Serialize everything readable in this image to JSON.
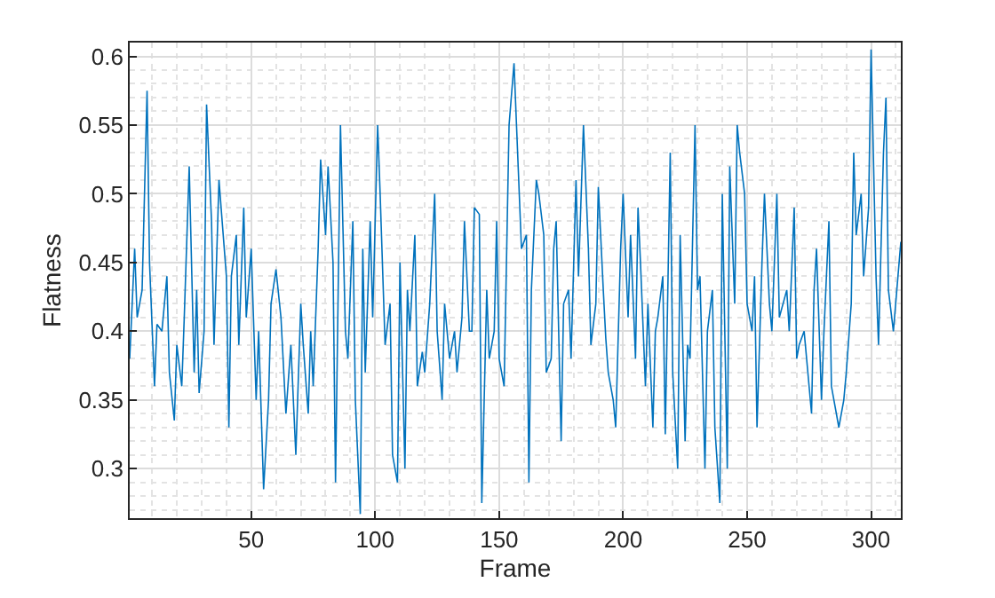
{
  "chart_data": {
    "type": "line",
    "xlabel": "Frame",
    "ylabel": "Flatness",
    "xlim": [
      1,
      312
    ],
    "ylim": [
      0.264,
      0.61
    ],
    "xticks": [
      50,
      100,
      150,
      200,
      250,
      300
    ],
    "yticks": [
      0.3,
      0.35,
      0.4,
      0.45,
      0.5,
      0.55,
      0.6
    ],
    "grid": true,
    "line_style": "solid",
    "marker": "none",
    "series": [
      {
        "color": "#0072bd",
        "x": [
          1,
          3,
          4,
          6,
          8,
          9,
          11,
          12,
          14,
          16,
          17,
          19,
          20,
          22,
          23,
          25,
          27,
          28,
          29,
          31,
          32,
          34,
          35,
          37,
          40,
          41,
          42,
          44,
          45,
          47,
          48,
          50,
          52,
          53,
          55,
          57,
          58,
          60,
          62,
          64,
          66,
          68,
          70,
          71,
          73,
          74,
          75,
          77,
          78,
          80,
          81,
          83,
          84,
          86,
          88,
          89,
          91,
          92,
          94,
          95,
          96,
          98,
          99,
          101,
          102,
          104,
          106,
          107,
          109,
          110,
          112,
          113,
          114,
          116,
          117,
          119,
          120,
          122,
          124,
          125,
          127,
          128,
          130,
          132,
          133,
          135,
          136,
          138,
          139,
          140,
          142,
          143,
          145,
          146,
          148,
          149,
          150,
          152,
          154,
          156,
          159,
          161,
          162,
          163,
          165,
          166,
          168,
          169,
          171,
          172,
          173,
          175,
          176,
          178,
          179,
          181,
          182,
          184,
          186,
          187,
          189,
          190,
          192,
          193,
          194,
          196,
          197,
          199,
          200,
          202,
          203,
          205,
          206,
          207,
          209,
          210,
          212,
          213,
          214,
          216,
          217,
          219,
          220,
          222,
          223,
          225,
          226,
          227,
          229,
          230,
          231,
          233,
          234,
          236,
          237,
          239,
          240,
          242,
          243,
          245,
          246,
          247,
          249,
          250,
          252,
          253,
          254,
          256,
          257,
          259,
          260,
          262,
          263,
          266,
          267,
          269,
          270,
          271,
          273,
          274,
          276,
          277,
          278,
          280,
          281,
          283,
          284,
          286,
          287,
          289,
          290,
          292,
          293,
          294,
          296,
          297,
          299,
          300,
          302,
          303,
          305,
          306,
          307,
          309,
          312
        ],
        "values": [
          0.38,
          0.46,
          0.41,
          0.43,
          0.575,
          0.45,
          0.36,
          0.405,
          0.4,
          0.44,
          0.37,
          0.335,
          0.39,
          0.36,
          0.41,
          0.52,
          0.37,
          0.43,
          0.355,
          0.4,
          0.565,
          0.48,
          0.39,
          0.51,
          0.44,
          0.33,
          0.44,
          0.47,
          0.39,
          0.49,
          0.41,
          0.46,
          0.35,
          0.4,
          0.285,
          0.35,
          0.42,
          0.445,
          0.41,
          0.34,
          0.39,
          0.31,
          0.42,
          0.39,
          0.34,
          0.4,
          0.36,
          0.46,
          0.525,
          0.47,
          0.52,
          0.45,
          0.29,
          0.55,
          0.4,
          0.38,
          0.48,
          0.35,
          0.267,
          0.46,
          0.37,
          0.48,
          0.41,
          0.55,
          0.5,
          0.39,
          0.42,
          0.31,
          0.29,
          0.45,
          0.3,
          0.43,
          0.4,
          0.47,
          0.36,
          0.385,
          0.37,
          0.42,
          0.5,
          0.4,
          0.35,
          0.42,
          0.38,
          0.4,
          0.37,
          0.41,
          0.48,
          0.4,
          0.4,
          0.49,
          0.485,
          0.275,
          0.43,
          0.38,
          0.4,
          0.48,
          0.38,
          0.36,
          0.55,
          0.595,
          0.46,
          0.47,
          0.29,
          0.43,
          0.51,
          0.5,
          0.47,
          0.37,
          0.38,
          0.46,
          0.48,
          0.32,
          0.42,
          0.43,
          0.38,
          0.51,
          0.44,
          0.55,
          0.46,
          0.39,
          0.42,
          0.505,
          0.43,
          0.395,
          0.37,
          0.35,
          0.33,
          0.46,
          0.5,
          0.41,
          0.47,
          0.38,
          0.49,
          0.45,
          0.36,
          0.42,
          0.33,
          0.4,
          0.41,
          0.44,
          0.325,
          0.53,
          0.37,
          0.3,
          0.47,
          0.32,
          0.39,
          0.38,
          0.55,
          0.43,
          0.44,
          0.3,
          0.4,
          0.43,
          0.33,
          0.275,
          0.5,
          0.3,
          0.52,
          0.42,
          0.55,
          0.53,
          0.5,
          0.42,
          0.4,
          0.44,
          0.33,
          0.45,
          0.5,
          0.42,
          0.4,
          0.5,
          0.41,
          0.43,
          0.4,
          0.49,
          0.38,
          0.39,
          0.4,
          0.38,
          0.34,
          0.43,
          0.46,
          0.35,
          0.4,
          0.48,
          0.36,
          0.34,
          0.33,
          0.35,
          0.37,
          0.42,
          0.53,
          0.47,
          0.5,
          0.44,
          0.49,
          0.605,
          0.44,
          0.39,
          0.53,
          0.57,
          0.43,
          0.4,
          0.465
        ]
      }
    ]
  }
}
